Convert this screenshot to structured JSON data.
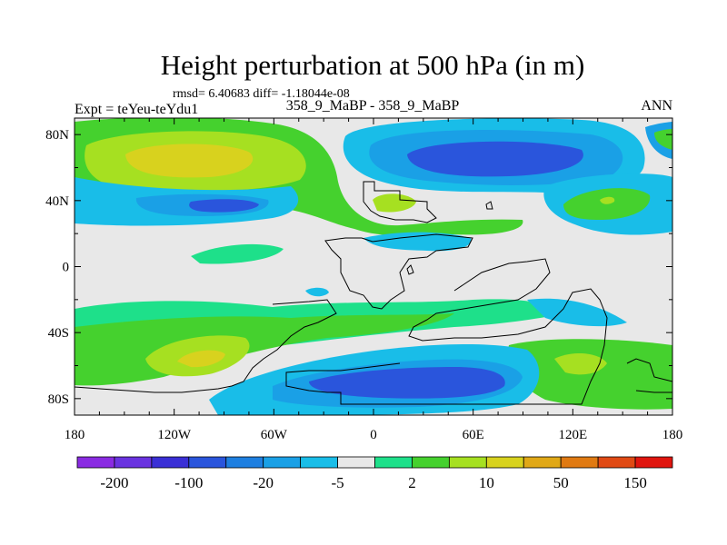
{
  "chart_data": {
    "type": "heatmap",
    "title": "Height perturbation at 500 hPa (in m)",
    "stats": "rmsd= 6.40683  diff= -1.18044e-08",
    "left_label": "Expt = teYeu-teYdu1",
    "center_label": "358_9_MaBP - 358_9_MaBP",
    "right_label": "ANN",
    "x_ticks": [
      {
        "value": -180,
        "label": "180"
      },
      {
        "value": -120,
        "label": "120W"
      },
      {
        "value": -60,
        "label": "60W"
      },
      {
        "value": 0,
        "label": "0"
      },
      {
        "value": 60,
        "label": "60E"
      },
      {
        "value": 120,
        "label": "120E"
      },
      {
        "value": 180,
        "label": "180"
      }
    ],
    "y_ticks": [
      {
        "value": 80,
        "label": "80N"
      },
      {
        "value": 40,
        "label": "40N"
      },
      {
        "value": 0,
        "label": "0"
      },
      {
        "value": -40,
        "label": "40S"
      },
      {
        "value": -80,
        "label": "80S"
      }
    ],
    "xlim": [
      -180,
      180
    ],
    "ylim": [
      -90,
      90
    ],
    "colorbar": {
      "colors": [
        "#8a2be2",
        "#6a33e0",
        "#3a2fd6",
        "#2a55dc",
        "#1e7fe0",
        "#1aa0e6",
        "#19bde8",
        "#e8e8e8",
        "#1ee08a",
        "#45d12e",
        "#a6e021",
        "#d8d21e",
        "#e0a817",
        "#e07a12",
        "#e04a14",
        "#e0150f"
      ],
      "labels": [
        {
          "after_index": 0,
          "text": "-200"
        },
        {
          "after_index": 2,
          "text": "-100"
        },
        {
          "after_index": 4,
          "text": "-20"
        },
        {
          "after_index": 6,
          "text": "-5"
        },
        {
          "after_index": 8,
          "text": "2"
        },
        {
          "after_index": 10,
          "text": "10"
        },
        {
          "after_index": 12,
          "text": "50"
        },
        {
          "after_index": 14,
          "text": "150"
        }
      ]
    },
    "regions": [
      {
        "name": "north-pacific-high",
        "level": "10 to 20",
        "color": "#a6e021",
        "lon": -120,
        "lat": 67,
        "rx": 58,
        "ry": 16
      },
      {
        "name": "north-pacific-core",
        "level": "20 to 50",
        "color": "#d8d21e",
        "lon": -115,
        "lat": 66,
        "rx": 42,
        "ry": 12
      },
      {
        "name": "north-atlantic-high",
        "level": "2 to 10",
        "color": "#45d12e",
        "lon": 15,
        "lat": 38,
        "rx": 38,
        "ry": 11
      },
      {
        "name": "siberian-low",
        "level": "-20 to -5",
        "color": "#19bde8",
        "lon": 50,
        "lat": 68,
        "rx": 65,
        "ry": 22
      },
      {
        "name": "siberian-low-core",
        "level": "-50 to -20",
        "color": "#2a55dc",
        "lon": 55,
        "lat": 65,
        "rx": 48,
        "ry": 13
      },
      {
        "name": "north-pacific-east-low",
        "level": "-20 to -5",
        "color": "#1aa0e6",
        "lon": -105,
        "lat": 38,
        "rx": 60,
        "ry": 9
      },
      {
        "name": "southern-ocean-high",
        "level": "10 to 20",
        "color": "#a6e021",
        "lon": -120,
        "lat": -55,
        "rx": 40,
        "ry": 10
      },
      {
        "name": "antarctic-low",
        "level": "-20 to -5",
        "color": "#1aa0e6",
        "lon": 40,
        "lat": -70,
        "rx": 80,
        "ry": 16
      },
      {
        "name": "antarctic-low-core",
        "level": "-50 to -20",
        "color": "#2a55dc",
        "lon": 45,
        "lat": -68,
        "rx": 50,
        "ry": 9
      },
      {
        "name": "australia-high",
        "level": "2 to 10",
        "color": "#45d12e",
        "lon": 140,
        "lat": -62,
        "rx": 30,
        "ry": 15
      }
    ]
  }
}
